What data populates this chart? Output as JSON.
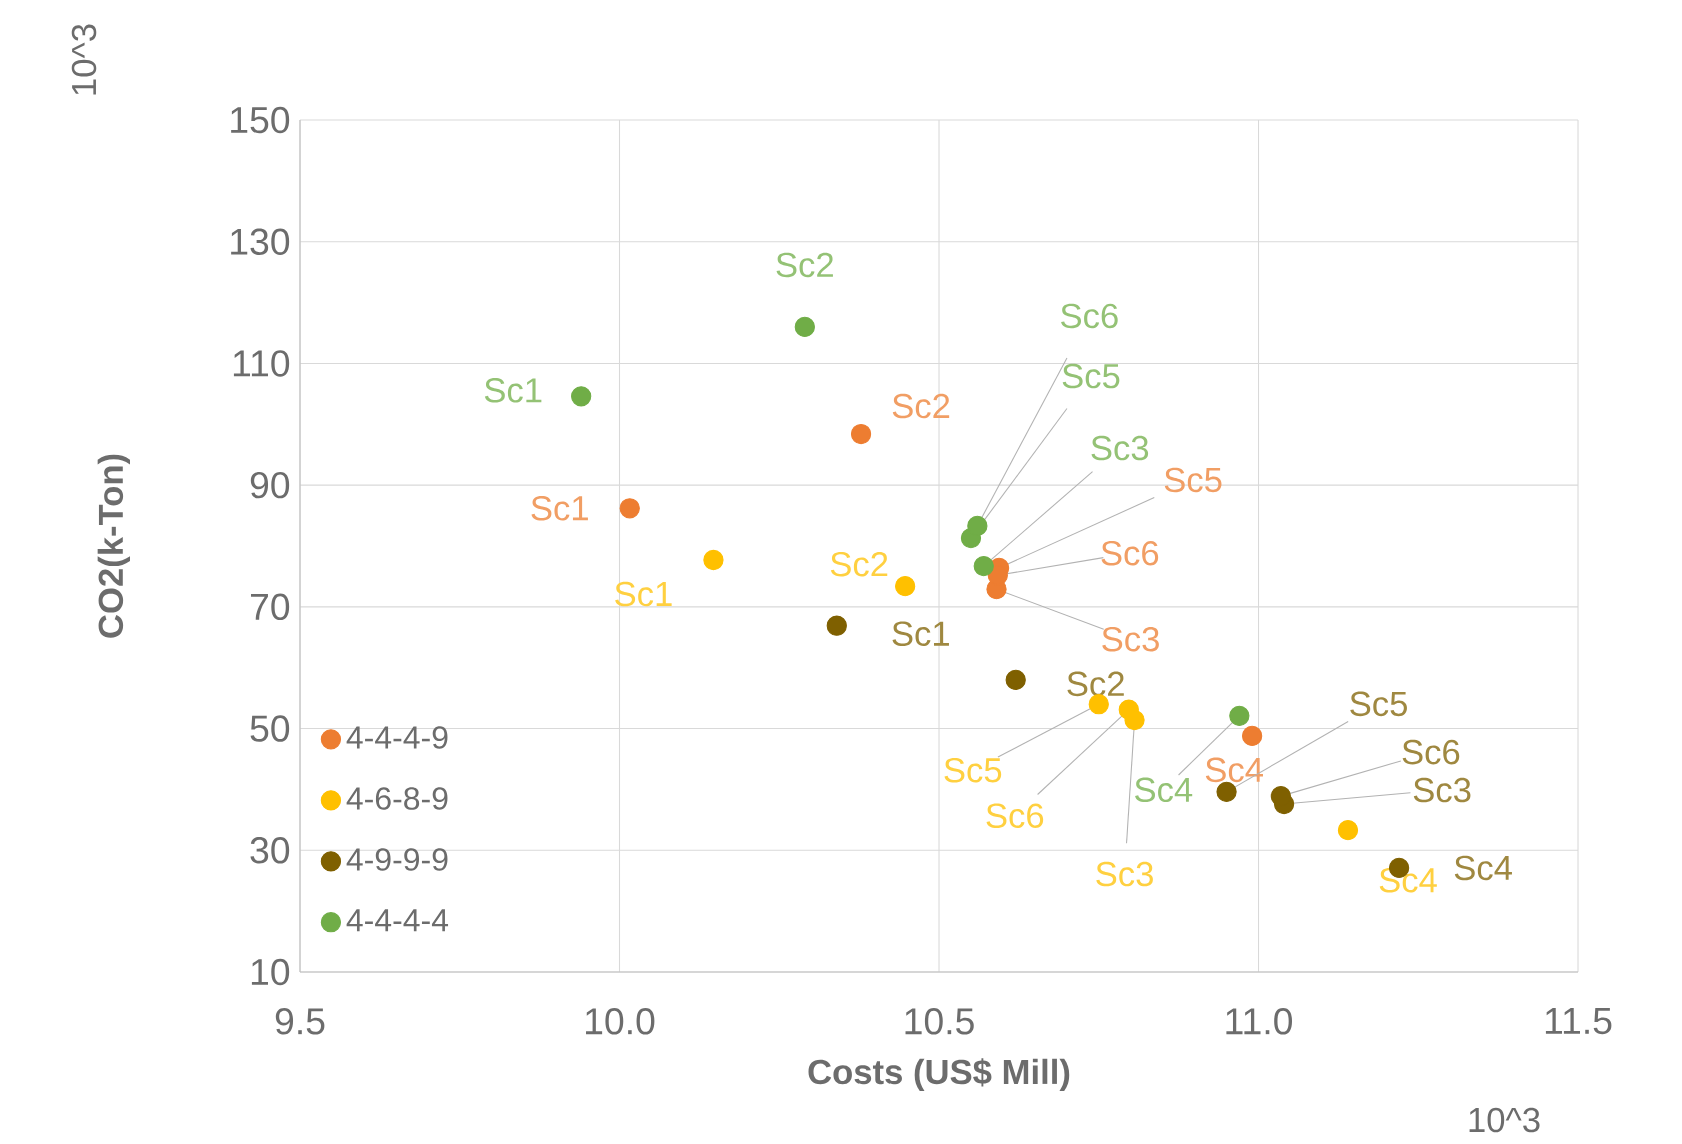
{
  "chart_data": {
    "type": "scatter",
    "xlabel": "Costs (US$ Mill)",
    "ylabel": "CO2(k-Ton)",
    "xlim": [
      9.5,
      11.5
    ],
    "xticks": [
      9.5,
      {
        "value": 10,
        "label": "10.0"
      },
      10.5,
      {
        "value": 11,
        "label": "11.0"
      },
      11.5
    ],
    "ylim": [
      10,
      150
    ],
    "yticks": [
      10,
      30,
      50,
      70,
      90,
      110,
      130,
      150
    ],
    "grid": true,
    "legend": "left",
    "marker": "circle",
    "series": [
      {
        "name": "4-4-4-9",
        "color": "#ed7d31",
        "x": [
          10.016,
          10.378,
          10.59,
          10.99,
          10.594,
          10.592
        ],
        "values": [
          86.2,
          98.4,
          72.9,
          48.8,
          76.4,
          75.2
        ]
      },
      {
        "name": "4-6-8-9",
        "color": "#ffc000",
        "x": [
          10.147,
          10.447,
          10.806,
          11.14,
          10.75,
          10.797
        ],
        "values": [
          77.7,
          73.4,
          51.4,
          33.3,
          54.0,
          53.1
        ]
      },
      {
        "name": "4-9-9-9",
        "color": "#7f6000",
        "x": [
          10.34,
          10.62,
          11.04,
          11.22,
          10.95,
          11.035
        ],
        "values": [
          66.9,
          58.0,
          37.6,
          27.1,
          39.6,
          38.9
        ]
      },
      {
        "name": "4-4-4-4",
        "color": "#70ad47",
        "x": [
          9.94,
          10.29,
          10.57,
          10.97,
          10.55,
          10.56
        ],
        "values": [
          104.6,
          116.0,
          76.7,
          52.1,
          81.3,
          83.3
        ]
      }
    ],
    "annotations": [
      {
        "text": "Sc1",
        "x": 10.016,
        "y": 86.2
      },
      {
        "text": "Sc2",
        "x": 10.378,
        "y": 98.4
      },
      {
        "text": "Sc3",
        "x": 10.59,
        "y": 72.9
      },
      {
        "text": "Sc4",
        "x": 10.99,
        "y": 48.8
      },
      {
        "text": "Sc5",
        "x": 10.594,
        "y": 76.4
      },
      {
        "text": "Sc6",
        "x": 10.592,
        "y": 75.2
      },
      {
        "text": "Sc1",
        "x": 10.147,
        "y": 77.7
      },
      {
        "text": "Sc2",
        "x": 10.447,
        "y": 73.4
      },
      {
        "text": "Sc3",
        "x": 10.806,
        "y": 51.4
      },
      {
        "text": "Sc4",
        "x": 11.14,
        "y": 33.3
      },
      {
        "text": "Sc5",
        "x": 10.75,
        "y": 54.0
      },
      {
        "text": "Sc6",
        "x": 10.797,
        "y": 53.1
      },
      {
        "text": "Sc1",
        "x": 10.34,
        "y": 66.9
      },
      {
        "text": "Sc2",
        "x": 10.62,
        "y": 58.0
      },
      {
        "text": "Sc3",
        "x": 11.04,
        "y": 37.6
      },
      {
        "text": "Sc4",
        "x": 11.22,
        "y": 27.1
      },
      {
        "text": "Sc5",
        "x": 10.95,
        "y": 39.6
      },
      {
        "text": "Sc6",
        "x": 11.035,
        "y": 38.9
      },
      {
        "text": "Sc1",
        "x": 9.94,
        "y": 104.6
      },
      {
        "text": "Sc2",
        "x": 10.29,
        "y": 116.0
      },
      {
        "text": "Sc3",
        "x": 10.57,
        "y": 76.7
      },
      {
        "text": "Sc4",
        "x": 10.97,
        "y": 52.1
      },
      {
        "text": "Sc5",
        "x": 10.55,
        "y": 81.3
      },
      {
        "text": "Sc6",
        "x": 10.56,
        "y": 83.3
      },
      "10^3",
      "10^3"
    ]
  }
}
